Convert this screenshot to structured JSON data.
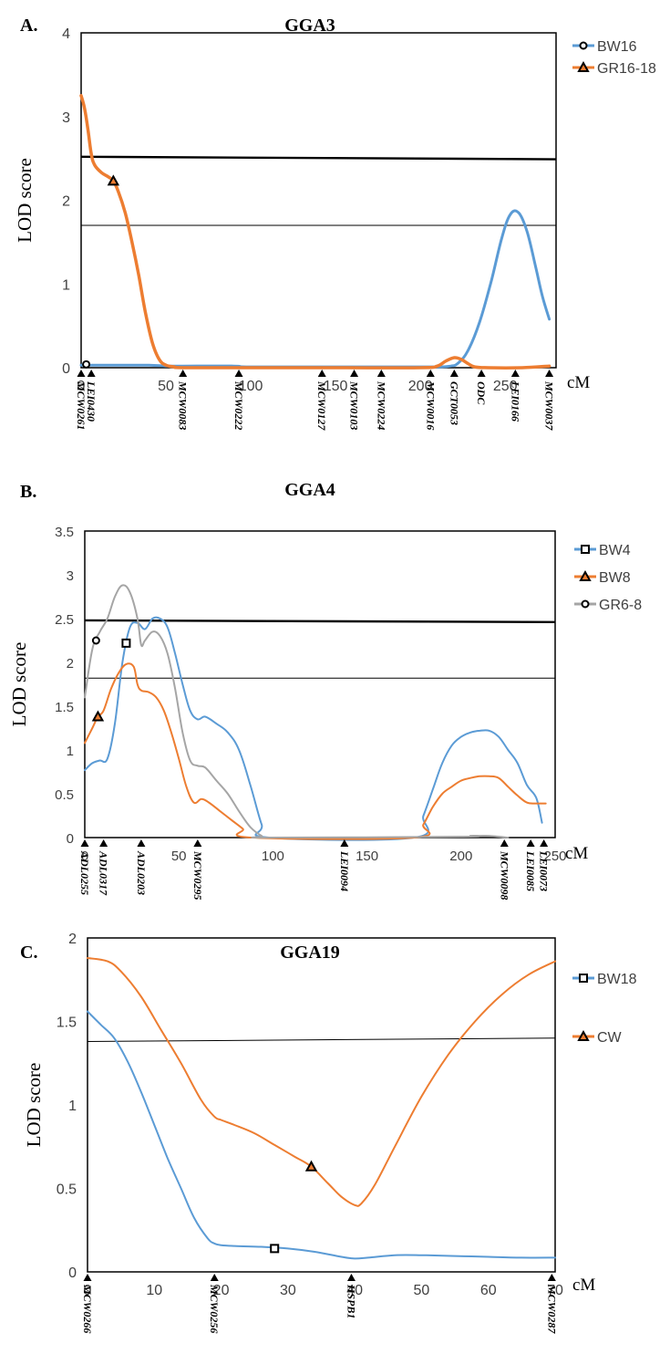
{
  "colors": {
    "blue": "#5b9bd5",
    "orange": "#ed7d31",
    "gray": "#a5a5a5",
    "axis": "#000000"
  },
  "chart_data": [
    {
      "type": "line",
      "label": "A.",
      "title": "GGA3",
      "ylabel": "LOD score",
      "xunit": "cM",
      "ylim": [
        0,
        4
      ],
      "yticks": [
        0,
        1,
        2,
        3,
        4
      ],
      "xlim": [
        0,
        280
      ],
      "xticks": [
        0,
        50,
        100,
        150,
        200,
        250
      ],
      "thresholds": [
        {
          "y_start": 2.52,
          "y_end": 2.49,
          "weight": "thick"
        },
        {
          "y_start": 1.7,
          "y_end": 1.7,
          "weight": "thin"
        }
      ],
      "markers": [
        {
          "name": "MCW0261",
          "cm": 0
        },
        {
          "name": "LEI0430",
          "cm": 6
        },
        {
          "name": "MCW0083",
          "cm": 60
        },
        {
          "name": "MCW0222",
          "cm": 93
        },
        {
          "name": "MCW0127",
          "cm": 142
        },
        {
          "name": "MCW0103",
          "cm": 161
        },
        {
          "name": "MCW0224",
          "cm": 177
        },
        {
          "name": "MCW0016",
          "cm": 206
        },
        {
          "name": "GCT0053",
          "cm": 220
        },
        {
          "name": "ODC",
          "cm": 236
        },
        {
          "name": "LEI0166",
          "cm": 256
        },
        {
          "name": "MCW0037",
          "cm": 276
        }
      ],
      "legend_position": "right",
      "series": [
        {
          "name": "BW16",
          "color": "blue",
          "symbol": "circle",
          "width": 3,
          "mark": [
            3,
            0.04
          ],
          "x": [
            0,
            20,
            40,
            50,
            60,
            90,
            100,
            150,
            200,
            212,
            218,
            222,
            228,
            235,
            242,
            248,
            253,
            258,
            263,
            268,
            272,
            276
          ],
          "y": [
            0.03,
            0.03,
            0.03,
            0.02,
            0.02,
            0.02,
            0.01,
            0.01,
            0.01,
            0.01,
            0.02,
            0.05,
            0.2,
            0.55,
            1.05,
            1.55,
            1.83,
            1.85,
            1.62,
            1.2,
            0.85,
            0.58
          ]
        },
        {
          "name": "GR16-18",
          "color": "orange",
          "symbol": "triangle",
          "width": 3.5,
          "mark": [
            19,
            2.23
          ],
          "x": [
            0,
            2,
            4,
            6,
            8,
            12,
            16,
            19,
            22,
            26,
            30,
            34,
            38,
            42,
            46,
            50,
            55,
            60,
            100,
            150,
            200,
            210,
            215,
            220,
            224,
            228,
            232,
            240,
            260,
            276
          ],
          "y": [
            3.25,
            3.1,
            2.85,
            2.55,
            2.42,
            2.33,
            2.28,
            2.23,
            2.1,
            1.85,
            1.5,
            1.1,
            0.65,
            0.3,
            0.1,
            0.03,
            0.01,
            0.0,
            0.0,
            0.0,
            0.0,
            0.02,
            0.08,
            0.12,
            0.1,
            0.05,
            0.01,
            0.0,
            0.0,
            0.02
          ]
        }
      ]
    },
    {
      "type": "line",
      "label": "B.",
      "title": "GGA4",
      "ylabel": "LOD score",
      "xunit": "cM",
      "ylim": [
        0,
        3.5
      ],
      "yticks": [
        0,
        0.5,
        1,
        1.5,
        2,
        2.5,
        3,
        3.5
      ],
      "xlim": [
        0,
        250
      ],
      "xticks": [
        0,
        50,
        100,
        150,
        200,
        250
      ],
      "thresholds": [
        {
          "y_start": 2.48,
          "y_end": 2.46,
          "weight": "thick"
        },
        {
          "y_start": 1.82,
          "y_end": 1.82,
          "weight": "thin"
        }
      ],
      "markers": [
        {
          "name": "ADL0255",
          "cm": 0
        },
        {
          "name": "ADL0317",
          "cm": 10
        },
        {
          "name": "ADL0203",
          "cm": 30
        },
        {
          "name": "MCW0295",
          "cm": 60
        },
        {
          "name": "LEI0094",
          "cm": 138
        },
        {
          "name": "MCW0098",
          "cm": 223
        },
        {
          "name": "LEI0085",
          "cm": 237
        },
        {
          "name": "LEI0073",
          "cm": 244
        }
      ],
      "legend_position": "right",
      "series": [
        {
          "name": "BW4",
          "color": "blue",
          "symbol": "square",
          "width": 2,
          "mark": [
            22,
            2.22
          ],
          "x": [
            0,
            4,
            8,
            12,
            16,
            20,
            24,
            28,
            32,
            36,
            40,
            44,
            48,
            52,
            56,
            60,
            64,
            70,
            76,
            82,
            88,
            94,
            98,
            175,
            180,
            185,
            190,
            195,
            200,
            205,
            210,
            215,
            220,
            225,
            230,
            235,
            240,
            243
          ],
          "y": [
            0.77,
            0.85,
            0.88,
            0.9,
            1.3,
            2.0,
            2.4,
            2.45,
            2.38,
            2.5,
            2.5,
            2.4,
            2.1,
            1.75,
            1.45,
            1.35,
            1.38,
            1.3,
            1.2,
            1.0,
            0.6,
            0.15,
            0.0,
            0.0,
            0.25,
            0.55,
            0.85,
            1.05,
            1.15,
            1.2,
            1.22,
            1.22,
            1.15,
            1.0,
            0.85,
            0.6,
            0.45,
            0.17
          ]
        },
        {
          "name": "BW8",
          "color": "orange",
          "symbol": "triangle",
          "width": 2,
          "mark": [
            7,
            1.38
          ],
          "x": [
            0,
            4,
            7,
            10,
            14,
            18,
            22,
            26,
            28,
            30,
            34,
            38,
            42,
            46,
            50,
            54,
            58,
            62,
            66,
            72,
            78,
            84,
            89,
            175,
            180,
            185,
            190,
            195,
            200,
            205,
            210,
            215,
            220,
            225,
            230,
            235,
            240,
            245
          ],
          "y": [
            1.08,
            1.25,
            1.38,
            1.45,
            1.7,
            1.88,
            1.98,
            1.95,
            1.75,
            1.68,
            1.66,
            1.6,
            1.45,
            1.2,
            0.9,
            0.58,
            0.4,
            0.44,
            0.4,
            0.3,
            0.2,
            0.1,
            0.0,
            0.0,
            0.15,
            0.35,
            0.5,
            0.58,
            0.65,
            0.68,
            0.7,
            0.7,
            0.68,
            0.58,
            0.48,
            0.4,
            0.39,
            0.39
          ]
        },
        {
          "name": "GR6-8",
          "color": "gray",
          "symbol": "circle",
          "width": 2,
          "mark": [
            6,
            2.25
          ],
          "x": [
            0,
            4,
            8,
            12,
            16,
            20,
            24,
            28,
            30,
            32,
            36,
            40,
            44,
            48,
            52,
            56,
            60,
            64,
            70,
            76,
            82,
            88,
            94,
            98,
            200,
            205,
            210,
            215,
            220,
            225
          ],
          "y": [
            1.6,
            2.15,
            2.35,
            2.5,
            2.75,
            2.88,
            2.8,
            2.5,
            2.2,
            2.25,
            2.35,
            2.3,
            2.1,
            1.7,
            1.2,
            0.88,
            0.82,
            0.8,
            0.65,
            0.5,
            0.3,
            0.12,
            0.02,
            0.0,
            0.01,
            0.02,
            0.02,
            0.02,
            0.01,
            0.0
          ]
        }
      ]
    },
    {
      "type": "line",
      "label": "C.",
      "title": "GGA19",
      "ylabel": "LOD score",
      "xunit": "cM",
      "ylim": [
        0,
        2
      ],
      "yticks": [
        0,
        0.5,
        1,
        1.5,
        2
      ],
      "xlim": [
        0,
        70
      ],
      "xticks": [
        0,
        10,
        20,
        30,
        40,
        50,
        60,
        70
      ],
      "thresholds": [
        {
          "y_start": 1.38,
          "y_end": 1.4,
          "weight": "thin"
        }
      ],
      "markers": [
        {
          "name": "MCW0266",
          "cm": 0
        },
        {
          "name": "MCW0256",
          "cm": 19
        },
        {
          "name": "HSPB1",
          "cm": 39.5
        },
        {
          "name": "MCW0287",
          "cm": 69.5
        }
      ],
      "legend_position": "right",
      "series": [
        {
          "name": "BW18",
          "color": "blue",
          "symbol": "square",
          "width": 2,
          "mark": [
            28,
            0.14
          ],
          "x": [
            0,
            2,
            4,
            6,
            8,
            10,
            12,
            14,
            16,
            18,
            19,
            20,
            22,
            26,
            30,
            34,
            38,
            40,
            42,
            46,
            50,
            55,
            60,
            65,
            70
          ],
          "y": [
            1.56,
            1.48,
            1.4,
            1.26,
            1.08,
            0.88,
            0.68,
            0.5,
            0.32,
            0.2,
            0.17,
            0.16,
            0.155,
            0.15,
            0.14,
            0.12,
            0.09,
            0.08,
            0.085,
            0.1,
            0.1,
            0.095,
            0.09,
            0.085,
            0.085
          ]
        },
        {
          "name": "CW",
          "color": "orange",
          "symbol": "triangle",
          "width": 2,
          "mark": [
            33.5,
            0.63
          ],
          "x": [
            0,
            3,
            5,
            8,
            11,
            14,
            17,
            19,
            20,
            22,
            25,
            28,
            31,
            33.5,
            36,
            38,
            40,
            41,
            43,
            46,
            50,
            54,
            58,
            62,
            66,
            70
          ],
          "y": [
            1.88,
            1.86,
            1.8,
            1.65,
            1.45,
            1.25,
            1.03,
            0.93,
            0.91,
            0.88,
            0.83,
            0.76,
            0.69,
            0.63,
            0.53,
            0.45,
            0.4,
            0.41,
            0.52,
            0.75,
            1.05,
            1.3,
            1.5,
            1.66,
            1.78,
            1.86
          ]
        }
      ]
    }
  ]
}
